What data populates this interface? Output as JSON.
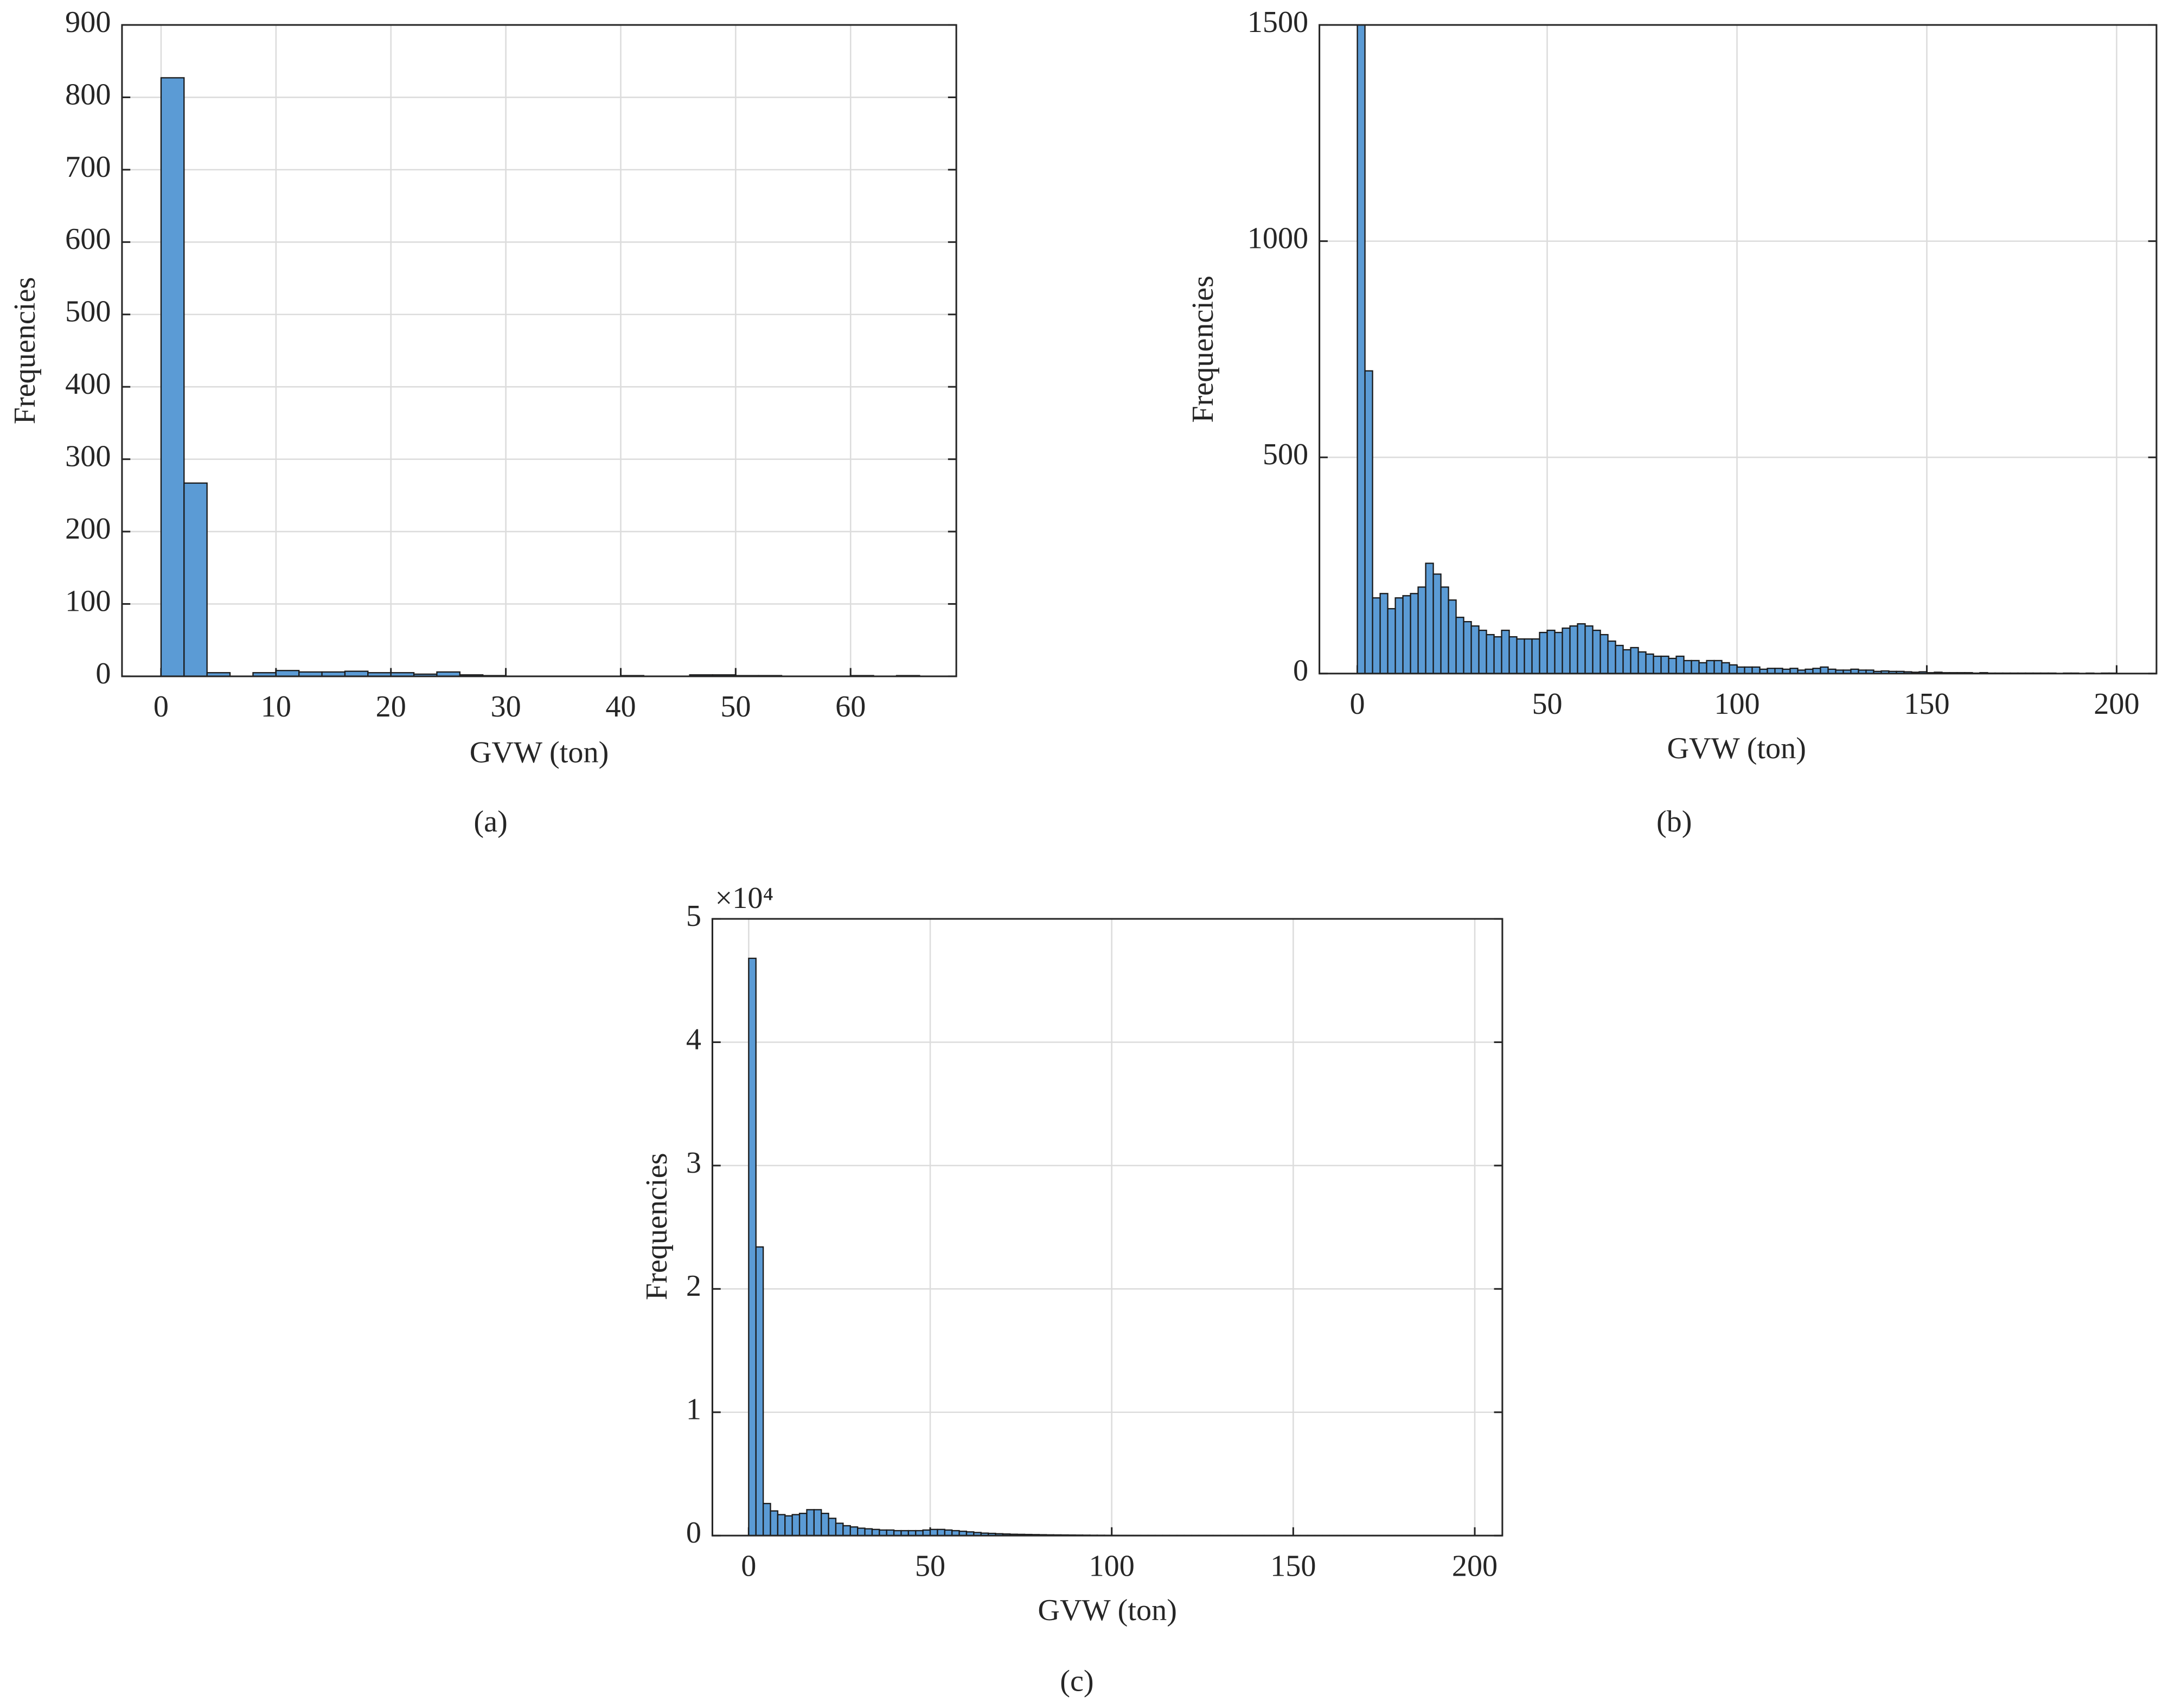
{
  "chart_data": [
    {
      "type": "histogram",
      "panel_label": "(a)",
      "x_label": "GVW (ton)",
      "y_label": "Frequencies",
      "color": "#5b9bd5",
      "grid": true,
      "bins": [
        0,
        2,
        4,
        6,
        8,
        10,
        12,
        14,
        16,
        18,
        20,
        22,
        24,
        26,
        28,
        30,
        32,
        34,
        36,
        38,
        40,
        42,
        44,
        46,
        48,
        50,
        52,
        54,
        56,
        58,
        60,
        62,
        64,
        66
      ],
      "values": [
        827,
        267,
        5,
        0,
        5,
        8,
        6,
        6,
        7,
        5,
        5,
        3,
        6,
        2,
        1,
        0,
        0,
        0,
        0,
        0,
        1,
        0,
        0,
        2,
        2,
        1,
        1,
        0,
        0,
        0,
        1,
        0,
        1
      ],
      "xlim": [
        -3.4,
        69.2
      ],
      "xticks": [
        0,
        10,
        20,
        30,
        40,
        50,
        60
      ],
      "ylim": [
        0,
        900
      ],
      "yticks": [
        0,
        100,
        200,
        300,
        400,
        500,
        600,
        700,
        800,
        900
      ]
    },
    {
      "type": "histogram",
      "panel_label": "(b)",
      "x_label": "GVW (ton)",
      "y_label": "Frequencies",
      "color": "#5b9bd5",
      "grid": true,
      "bins": [
        0,
        2,
        4,
        6,
        8,
        10,
        12,
        14,
        16,
        18,
        20,
        22,
        24,
        26,
        28,
        30,
        32,
        34,
        36,
        38,
        40,
        42,
        44,
        46,
        48,
        50,
        52,
        54,
        56,
        58,
        60,
        62,
        64,
        66,
        68,
        70,
        72,
        74,
        76,
        78,
        80,
        82,
        84,
        86,
        88,
        90,
        92,
        94,
        96,
        98,
        100,
        102,
        104,
        106,
        108,
        110,
        112,
        114,
        116,
        118,
        120,
        122,
        124,
        126,
        128,
        130,
        132,
        134,
        136,
        138,
        140,
        142,
        144,
        146,
        148,
        150,
        152,
        154,
        156,
        158,
        160,
        162,
        164,
        166,
        168,
        170,
        172,
        174,
        176,
        178,
        180,
        182,
        184,
        186,
        188,
        190,
        192,
        194,
        196,
        198,
        200
      ],
      "values": [
        1500,
        700,
        175,
        185,
        150,
        175,
        180,
        185,
        200,
        255,
        230,
        200,
        170,
        130,
        120,
        110,
        100,
        90,
        85,
        100,
        85,
        80,
        80,
        80,
        95,
        100,
        95,
        105,
        110,
        115,
        110,
        100,
        90,
        75,
        65,
        55,
        60,
        50,
        45,
        40,
        40,
        35,
        40,
        30,
        30,
        25,
        30,
        30,
        25,
        20,
        15,
        15,
        15,
        10,
        12,
        12,
        10,
        12,
        8,
        10,
        12,
        15,
        10,
        8,
        8,
        10,
        8,
        8,
        5,
        6,
        5,
        5,
        4,
        3,
        4,
        2,
        3,
        2,
        2,
        2,
        2,
        1,
        2,
        1,
        1,
        1,
        1,
        1,
        1,
        1,
        1,
        1,
        0,
        1,
        1,
        0,
        1,
        0,
        1,
        1
      ],
      "xlim": [
        -10,
        210.5
      ],
      "xticks": [
        0,
        50,
        100,
        150,
        200
      ],
      "ylim": [
        0,
        1500
      ],
      "yticks": [
        0,
        500,
        1000,
        1500
      ]
    },
    {
      "type": "histogram",
      "panel_label": "(c)",
      "x_label": "GVW (ton)",
      "y_label": "Frequencies",
      "y_multiplier": "×10⁴",
      "color": "#5b9bd5",
      "grid": true,
      "bins": [
        0,
        2,
        4,
        6,
        8,
        10,
        12,
        14,
        16,
        18,
        20,
        22,
        24,
        26,
        28,
        30,
        32,
        34,
        36,
        38,
        40,
        42,
        44,
        46,
        48,
        50,
        52,
        54,
        56,
        58,
        60,
        62,
        64,
        66,
        68,
        70,
        72,
        74,
        76,
        78,
        80,
        82,
        84,
        86,
        88,
        90,
        92,
        94,
        96,
        98,
        100,
        102,
        104,
        106,
        108,
        110,
        112,
        114,
        116,
        118,
        120,
        122,
        124,
        126,
        128,
        130,
        132,
        134,
        136,
        138,
        140,
        142,
        144,
        146,
        148,
        150,
        152,
        154,
        156,
        158,
        160,
        162,
        164,
        166,
        168,
        170,
        172,
        174,
        176,
        178,
        180,
        182,
        184,
        186,
        188,
        190,
        192,
        194,
        196,
        198,
        200
      ],
      "values": [
        46800,
        23400,
        2600,
        2000,
        1700,
        1600,
        1700,
        1800,
        2100,
        2100,
        1800,
        1400,
        1000,
        800,
        700,
        600,
        550,
        500,
        450,
        450,
        400,
        400,
        400,
        400,
        450,
        500,
        500,
        450,
        400,
        350,
        300,
        250,
        200,
        180,
        150,
        130,
        110,
        100,
        90,
        80,
        70,
        60,
        55,
        50,
        45,
        40,
        35,
        30,
        28,
        25,
        22,
        20,
        18,
        16,
        15,
        14,
        13,
        12,
        11,
        10,
        9,
        9,
        8,
        8,
        7,
        7,
        6,
        6,
        5,
        5,
        5,
        4,
        4,
        4,
        3,
        3,
        3,
        3,
        2,
        2,
        2,
        2,
        2,
        2,
        1,
        1,
        1,
        1,
        1,
        1,
        1,
        1,
        1,
        1,
        1,
        0,
        0,
        0,
        1,
        0
      ],
      "xlim": [
        -10,
        207.6
      ],
      "xticks": [
        0,
        50,
        100,
        150,
        200
      ],
      "ylim": [
        0,
        50000
      ],
      "yticks": [
        0,
        {
          "value": 10000,
          "label": "1"
        },
        {
          "value": 20000,
          "label": "2"
        },
        {
          "value": 30000,
          "label": "3"
        },
        {
          "value": 40000,
          "label": "4"
        },
        {
          "value": 50000,
          "label": "5"
        }
      ]
    }
  ]
}
